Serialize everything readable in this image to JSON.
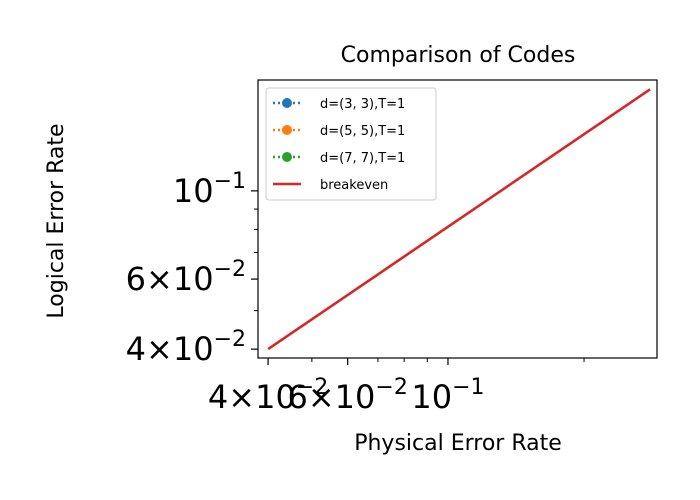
{
  "chart_data": {
    "type": "line",
    "title": "Comparison of Codes",
    "xlabel": "Physical Error Rate",
    "ylabel": "Logical Error Rate",
    "xscale": "log",
    "yscale": "log",
    "xlim": [
      0.038,
      0.29
    ],
    "ylim": [
      0.038,
      0.19
    ],
    "grid": false,
    "legend_position": "upper-left",
    "x_ticks": [
      {
        "value": 0.04,
        "base": "4×10",
        "exp": "−2"
      },
      {
        "value": 0.06,
        "base": "6×10",
        "exp": "−2"
      },
      {
        "value": 0.1,
        "base": "10",
        "exp": "−1"
      }
    ],
    "x_minor_ticks": [
      0.05,
      0.07,
      0.08,
      0.09,
      0.2
    ],
    "y_ticks": [
      {
        "value": 0.04,
        "base": "4×10",
        "exp": "−2"
      },
      {
        "value": 0.06,
        "base": "6×10",
        "exp": "−2"
      },
      {
        "value": 0.1,
        "base": "10",
        "exp": "−1"
      }
    ],
    "y_minor_ticks": [
      0.05,
      0.07,
      0.08,
      0.09
    ],
    "series": [
      {
        "name": "d=(3, 3),T=1",
        "color": "#1f77b4",
        "style": "dotted",
        "marker": "circle",
        "x": [],
        "y": []
      },
      {
        "name": "d=(5, 5),T=1",
        "color": "#ff7f0e",
        "style": "dotted",
        "marker": "circle",
        "x": [],
        "y": []
      },
      {
        "name": "d=(7, 7),T=1",
        "color": "#2ca02c",
        "style": "dotted",
        "marker": "circle",
        "x": [],
        "y": []
      },
      {
        "name": "breakeven",
        "color": "#d62728",
        "style": "solid",
        "marker": "none",
        "x": [
          0.04,
          0.28
        ],
        "y": [
          0.04,
          0.18
        ]
      }
    ]
  }
}
